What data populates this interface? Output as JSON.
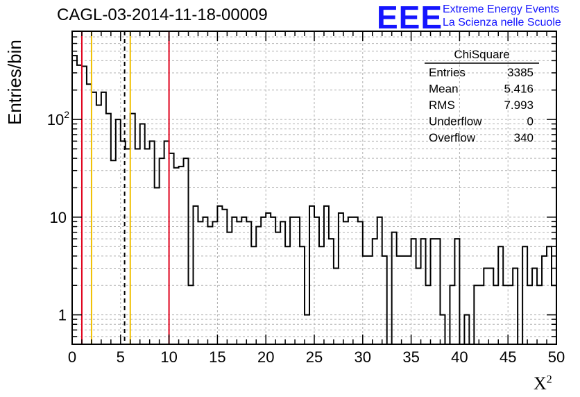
{
  "header": {
    "title": "CAGL-03-2014-11-18-00009",
    "logo_letters": "EEE",
    "logo_line1": "Extreme Energy Events",
    "logo_line2": "La Scienza nelle Scuole"
  },
  "colors": {
    "logo": "#1515ff",
    "histogram": "#000000",
    "red_lines": "#e0001b",
    "yellow_lines": "#f0c000",
    "black_dashed": "#000000",
    "grid": "#b0b0b0"
  },
  "chart_data": {
    "type": "histogram",
    "title": "CAGL-03-2014-11-18-00009",
    "xlabel": "X²",
    "xlabel_base": "X",
    "xlabel_sup": "2",
    "ylabel": "Entries/bin",
    "xlim": [
      0,
      50
    ],
    "ylim": [
      0.5,
      800
    ],
    "yscale": "log",
    "grid": true,
    "bin_width": 0.5,
    "x_ticks": [
      "0",
      "5",
      "10",
      "15",
      "20",
      "25",
      "30",
      "35",
      "40",
      "45",
      "50"
    ],
    "y_ticks": [
      {
        "value": 1,
        "label": "1"
      },
      {
        "value": 10,
        "label": "10"
      },
      {
        "value": 100,
        "label": "10",
        "exp": "2"
      }
    ],
    "values": [
      450,
      360,
      350,
      230,
      190,
      140,
      190,
      115,
      38,
      100,
      60,
      50,
      115,
      50,
      90,
      50,
      60,
      20,
      40,
      60,
      45,
      32,
      33,
      40,
      2,
      13,
      9,
      10,
      8,
      9,
      13,
      12,
      7,
      10,
      9,
      10,
      9,
      5,
      8,
      10,
      11,
      10,
      7,
      9,
      5,
      10,
      10,
      5,
      1,
      13,
      10,
      5,
      13,
      6,
      3,
      11,
      9,
      10,
      10,
      9,
      4,
      4,
      6,
      10,
      4,
      0,
      7,
      4,
      4,
      4,
      6,
      3,
      6,
      2,
      6,
      6,
      1,
      0,
      2,
      6,
      0,
      1,
      0,
      2,
      2,
      3,
      3,
      2,
      5,
      2,
      2,
      3,
      0,
      5,
      2,
      3,
      2,
      4,
      5,
      2
    ],
    "vlines": [
      {
        "x": 1,
        "color": "red"
      },
      {
        "x": 2,
        "color": "yellow"
      },
      {
        "x": 5.416,
        "color": "black-dashed"
      },
      {
        "x": 6,
        "color": "yellow"
      },
      {
        "x": 10,
        "color": "red"
      }
    ],
    "stats": {
      "title": "ChiSquare",
      "rows": [
        {
          "label": "Entries",
          "value": "3385"
        },
        {
          "label": "Mean",
          "value": "5.416"
        },
        {
          "label": "RMS",
          "value": "7.993"
        },
        {
          "label": "Underflow",
          "value": "0"
        },
        {
          "label": "Overflow",
          "value": "340"
        }
      ]
    }
  }
}
